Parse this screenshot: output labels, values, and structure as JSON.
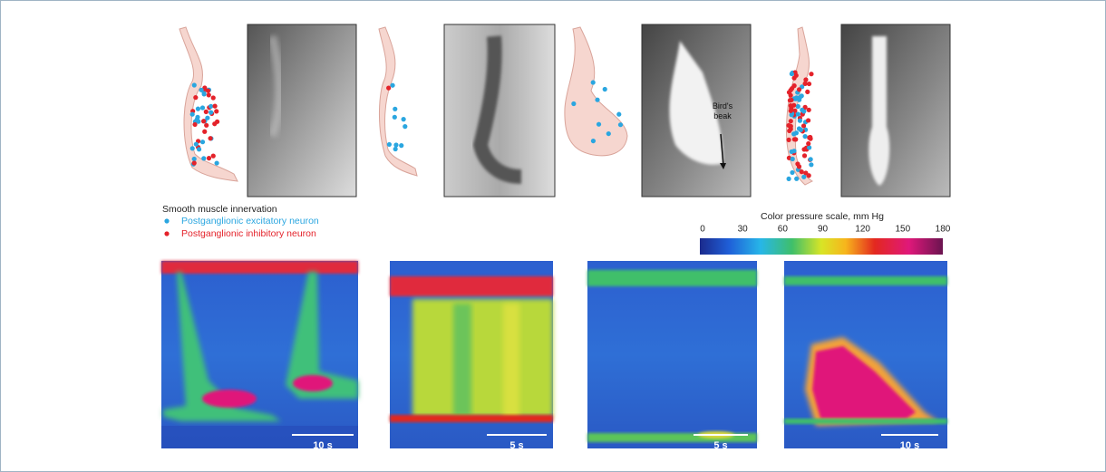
{
  "annotation": [
    "Bird's",
    "beak"
  ],
  "legend": {
    "title": "Smooth muscle innervation",
    "items": [
      "Postganglionic excitatory neuron",
      "Postganglionic inhibitory neuron"
    ]
  },
  "color_scale": {
    "title": "Color pressure scale, mm Hg",
    "ticks": [
      0,
      30,
      60,
      90,
      120,
      150,
      180
    ]
  },
  "panels": [
    {
      "scale_bar": "10 s"
    },
    {
      "scale_bar": "5 s"
    },
    {
      "scale_bar": "5 s"
    },
    {
      "scale_bar": "10 s"
    }
  ]
}
